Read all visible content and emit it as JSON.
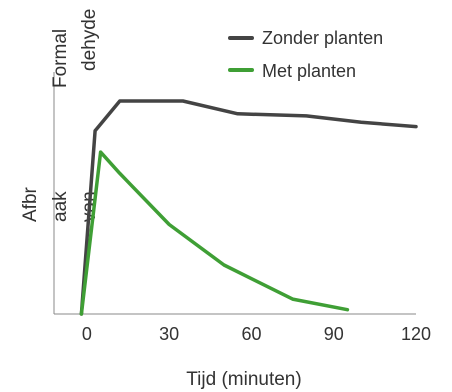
{
  "chart_data": {
    "type": "line",
    "title": "",
    "xlabel": "Tijd (minuten)",
    "ylabel_lines": [
      "Formal",
      "dehyde",
      "Afbr",
      "aak",
      "van"
    ],
    "xlim": [
      -12,
      120
    ],
    "ylim": [
      0,
      100
    ],
    "x_ticks": [
      0,
      30,
      60,
      90,
      120
    ],
    "grid": false,
    "legend": "top-right",
    "series": [
      {
        "name": "Zonder planten",
        "color": "#444444",
        "x": [
          -2,
          3,
          12,
          35,
          55,
          80,
          100,
          120
        ],
        "y": [
          0,
          86,
          100,
          100,
          94,
          93,
          90,
          88
        ]
      },
      {
        "name": "Met planten",
        "color": "#3f9f35",
        "x": [
          -2,
          5,
          12,
          30,
          50,
          75,
          95
        ],
        "y": [
          0,
          76,
          66,
          42,
          23,
          7,
          2
        ]
      }
    ]
  }
}
